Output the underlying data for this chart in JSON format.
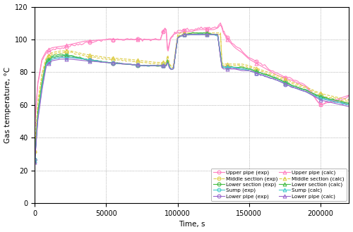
{
  "xlabel": "Time, s",
  "ylabel": "Gas temperature, °C",
  "xlim": [
    0,
    220000
  ],
  "ylim": [
    0,
    120
  ],
  "yticks": [
    0,
    20,
    40,
    60,
    80,
    100,
    120
  ],
  "xticks": [
    0,
    50000,
    100000,
    150000,
    200000
  ],
  "series": {
    "upper_pipe_exp": {
      "color": "#ff80c0",
      "marker": "o",
      "linestyle": "-",
      "label": "Upper pipe (exp)"
    },
    "middle_section_exp": {
      "color": "#ddcc44",
      "marker": "o",
      "linestyle": "--",
      "label": "Middle section (exp)"
    },
    "lower_section_exp": {
      "color": "#44bb44",
      "marker": "o",
      "linestyle": "-",
      "label": "Lower section (exp)"
    },
    "sump_exp": {
      "color": "#44cccc",
      "marker": "o",
      "linestyle": "-",
      "label": "Sump (exp)"
    },
    "lower_pipe_exp": {
      "color": "#9966cc",
      "marker": "o",
      "linestyle": "-",
      "label": "Lower pipe (exp)"
    },
    "upper_pipe_calc": {
      "color": "#ff80c0",
      "marker": "^",
      "linestyle": "-",
      "label": "Upper pipe (calc)"
    },
    "middle_section_calc": {
      "color": "#ddcc44",
      "marker": "^",
      "linestyle": "--",
      "label": "Middle section (calc)"
    },
    "lower_section_calc": {
      "color": "#44bb44",
      "marker": "^",
      "linestyle": "-",
      "label": "Lower section (calc)"
    },
    "sump_calc": {
      "color": "#44cccc",
      "marker": "^",
      "linestyle": "-",
      "label": "Sump (calc)"
    },
    "lower_pipe_calc": {
      "color": "#9966cc",
      "marker": "^",
      "linestyle": "-",
      "label": "Lower pipe (calc)"
    }
  }
}
